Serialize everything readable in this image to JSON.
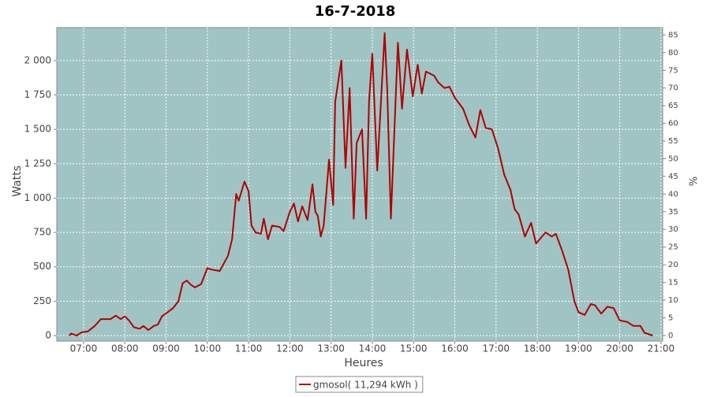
{
  "chart_data": {
    "type": "line",
    "title": "16-7-2018",
    "x_label": "Heures",
    "y_label": "Watts",
    "y2_label": "%",
    "x": [
      6.65,
      6.7,
      6.83,
      6.96,
      7.1,
      7.27,
      7.42,
      7.65,
      7.78,
      7.9,
      8.0,
      8.1,
      8.22,
      8.36,
      8.45,
      8.57,
      8.7,
      8.8,
      8.9,
      9.04,
      9.17,
      9.3,
      9.4,
      9.5,
      9.6,
      9.7,
      9.85,
      10.0,
      10.1,
      10.3,
      10.5,
      10.6,
      10.7,
      10.76,
      10.9,
      11.0,
      11.07,
      11.17,
      11.3,
      11.37,
      11.47,
      11.57,
      11.75,
      11.85,
      12.0,
      12.1,
      12.2,
      12.3,
      12.43,
      12.55,
      12.62,
      12.68,
      12.75,
      12.82,
      12.95,
      13.05,
      13.1,
      13.25,
      13.35,
      13.45,
      13.55,
      13.62,
      13.75,
      13.85,
      13.92,
      14.0,
      14.12,
      14.3,
      14.36,
      14.45,
      14.55,
      14.62,
      14.72,
      14.84,
      14.98,
      15.1,
      15.2,
      15.3,
      15.5,
      15.6,
      15.75,
      15.87,
      16.0,
      16.2,
      16.35,
      16.5,
      16.62,
      16.75,
      16.9,
      17.05,
      17.2,
      17.35,
      17.45,
      17.55,
      17.7,
      17.85,
      17.97,
      18.2,
      18.35,
      18.45,
      18.6,
      18.75,
      18.9,
      19.0,
      19.15,
      19.3,
      19.4,
      19.55,
      19.7,
      19.85,
      20.0,
      20.18,
      20.33,
      20.5,
      20.6,
      20.8
    ],
    "series": [
      {
        "name": "gmosol( 11,294 kWh )",
        "color": "#b00000",
        "values": [
          0,
          15,
          0,
          25,
          30,
          70,
          120,
          120,
          145,
          120,
          140,
          110,
          60,
          50,
          70,
          40,
          70,
          80,
          140,
          170,
          200,
          250,
          380,
          400,
          370,
          350,
          375,
          490,
          480,
          470,
          580,
          700,
          1030,
          980,
          1120,
          1050,
          800,
          750,
          740,
          850,
          700,
          800,
          790,
          760,
          900,
          960,
          830,
          940,
          840,
          1100,
          900,
          870,
          720,
          800,
          1280,
          950,
          1700,
          2000,
          1220,
          1800,
          850,
          1400,
          1500,
          850,
          1700,
          2050,
          1200,
          2200,
          1800,
          850,
          1600,
          2130,
          1650,
          2080,
          1740,
          1970,
          1760,
          1920,
          1890,
          1840,
          1800,
          1810,
          1730,
          1650,
          1530,
          1440,
          1640,
          1510,
          1500,
          1360,
          1170,
          1060,
          920,
          880,
          720,
          820,
          670,
          750,
          720,
          740,
          620,
          480,
          250,
          170,
          150,
          230,
          220,
          160,
          210,
          200,
          110,
          100,
          70,
          70,
          20,
          0
        ]
      }
    ],
    "xlim": [
      6.35,
      21.04
    ],
    "xticks": [
      {
        "value": 7,
        "label": "07:00"
      },
      {
        "value": 8,
        "label": "08:00"
      },
      {
        "value": 9,
        "label": "09:00"
      },
      {
        "value": 10,
        "label": "10:00"
      },
      {
        "value": 11,
        "label": "11:00"
      },
      {
        "value": 12,
        "label": "12:00"
      },
      {
        "value": 13,
        "label": "13:00"
      },
      {
        "value": 14,
        "label": "14:00"
      },
      {
        "value": 15,
        "label": "15:00"
      },
      {
        "value": 16,
        "label": "16:00"
      },
      {
        "value": 17,
        "label": "17:00"
      },
      {
        "value": 18,
        "label": "18:00"
      },
      {
        "value": 19,
        "label": "19:00"
      },
      {
        "value": 20,
        "label": "20:00"
      },
      {
        "value": 21,
        "label": "21:00"
      }
    ],
    "ylim": [
      -40,
      2240
    ],
    "yticks": [
      0,
      250,
      500,
      750,
      {
        "value": 1000,
        "label": "1 000"
      },
      {
        "value": 1250,
        "label": "1 250"
      },
      {
        "value": 1500,
        "label": "1 500"
      },
      {
        "value": 1750,
        "label": "1 750"
      },
      {
        "value": 2000,
        "label": "2 000"
      }
    ],
    "y2lim": [
      -1.6,
      87.1
    ],
    "y2ticks": [
      0,
      5,
      10,
      15,
      20,
      25,
      30,
      35,
      40,
      45,
      50,
      55,
      60,
      65,
      70,
      75,
      80,
      85
    ],
    "grid": true,
    "plot_color": "#a0c4c4",
    "legend": "bottom"
  }
}
